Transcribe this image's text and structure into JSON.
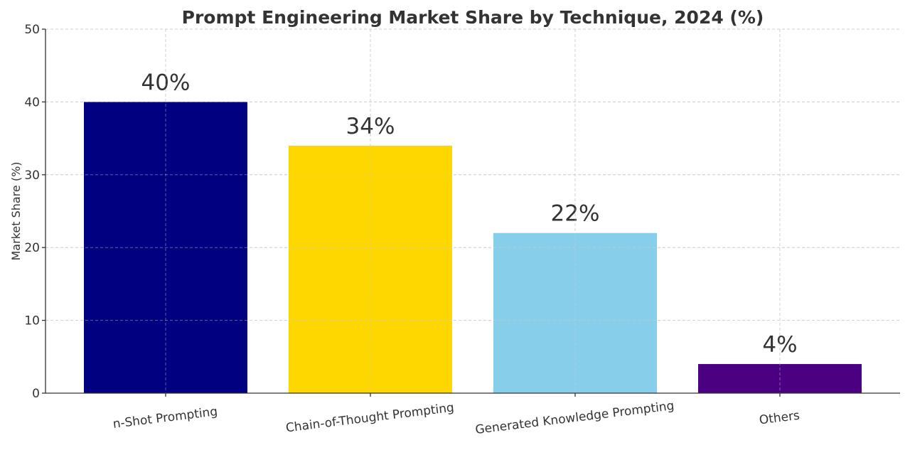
{
  "chart_data": {
    "type": "bar",
    "title": "Prompt Engineering Market Share by Technique, 2024 (%)",
    "xlabel": "",
    "ylabel": "Market Share (%)",
    "categories": [
      "n-Shot Prompting",
      "Chain-of-Thought Prompting",
      "Generated Knowledge Prompting",
      "Others"
    ],
    "values": [
      40,
      34,
      22,
      4
    ],
    "data_labels": [
      "40%",
      "34%",
      "22%",
      "4%"
    ],
    "colors": [
      "#000080",
      "#FFD700",
      "#87CEEB",
      "#4B0082"
    ],
    "ylim": [
      0,
      50
    ],
    "yticks": [
      0,
      10,
      20,
      30,
      40,
      50
    ],
    "grid": true
  }
}
